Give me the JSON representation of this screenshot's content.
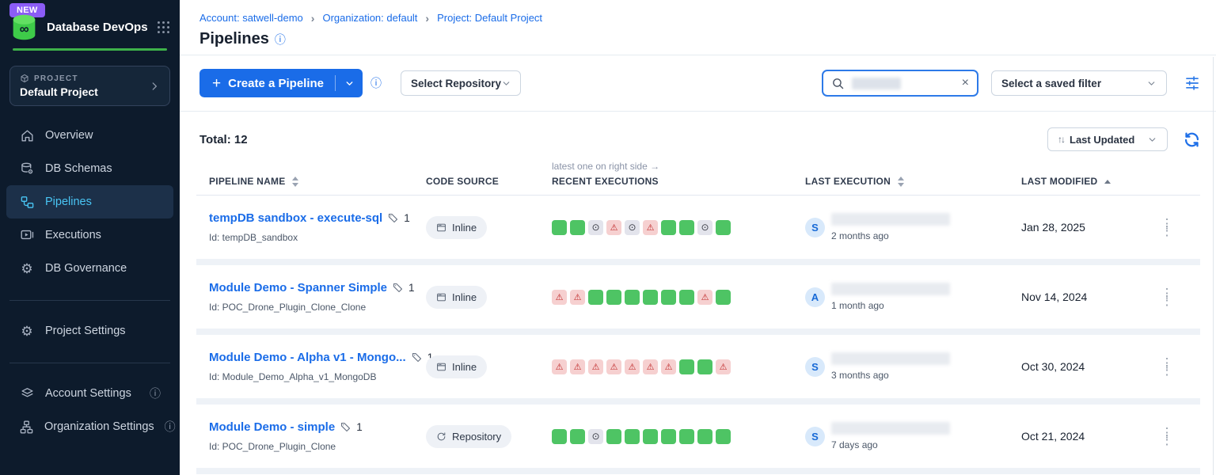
{
  "colors": {
    "accent_blue": "#1a6ce8",
    "brand_green": "#3eb24a",
    "sidebar_bg": "#0d1b2c",
    "active_nav": "#49c5f4",
    "status_ok": "#4ec464",
    "status_warn_bg": "#f6d0d0",
    "status_warn_fg": "#bf2727",
    "status_skip_bg": "#e3e4ec",
    "new_badge_bg": "#8b5cf6"
  },
  "sidebar": {
    "new_badge": "NEW",
    "app_title": "Database DevOps",
    "project_label": "PROJECT",
    "project_name": "Default Project",
    "nav_main": [
      {
        "label": "Overview",
        "icon": "home-icon",
        "active": false
      },
      {
        "label": "DB Schemas",
        "icon": "db-schemas-icon",
        "active": false
      },
      {
        "label": "Pipelines",
        "icon": "pipelines-icon",
        "active": true
      },
      {
        "label": "Executions",
        "icon": "executions-icon",
        "active": false
      },
      {
        "label": "DB Governance",
        "icon": "gear-icon",
        "active": false
      }
    ],
    "nav_project": [
      {
        "label": "Project Settings",
        "icon": "gear-icon",
        "active": false
      }
    ],
    "nav_account": [
      {
        "label": "Account Settings",
        "icon": "layers-icon",
        "info": true,
        "active": false
      },
      {
        "label": "Organization Settings",
        "icon": "org-chart-icon",
        "info": true,
        "active": false
      }
    ]
  },
  "header": {
    "breadcrumbs": [
      "Account: satwell-demo",
      "Organization: default",
      "Project: Default Project"
    ],
    "title": "Pipelines"
  },
  "toolbar": {
    "create_label": "Create a Pipeline",
    "select_repository": "Select Repository",
    "saved_filter": "Select a saved filter"
  },
  "listbar": {
    "total": "Total: 12",
    "sort_label": "Last Updated"
  },
  "table": {
    "hint": "latest one on right side →",
    "columns": {
      "name": "PIPELINE NAME",
      "source": "CODE SOURCE",
      "recent": "RECENT EXECUTIONS",
      "last_execution": "LAST EXECUTION",
      "last_modified": "LAST MODIFIED"
    },
    "status_glyphs": {
      "ok": "",
      "warn": "⚠",
      "skip": "⊙"
    },
    "rows": [
      {
        "name": "tempDB sandbox - execute-sql",
        "tag_count": "1",
        "id": "Id: tempDB_sandbox",
        "source": "Inline",
        "source_type": "inline",
        "executions": [
          "ok",
          "ok",
          "skip",
          "warn",
          "skip",
          "warn",
          "ok",
          "ok",
          "skip",
          "ok"
        ],
        "avatar": "S",
        "last_execution": "2 months ago",
        "last_modified": "Jan 28, 2025"
      },
      {
        "name": "Module Demo - Spanner Simple",
        "tag_count": "1",
        "id": "Id: POC_Drone_Plugin_Clone_Clone",
        "source": "Inline",
        "source_type": "inline",
        "executions": [
          "warn",
          "warn",
          "ok",
          "ok",
          "ok",
          "ok",
          "ok",
          "ok",
          "warn",
          "ok"
        ],
        "avatar": "A",
        "last_execution": "1 month ago",
        "last_modified": "Nov 14, 2024"
      },
      {
        "name": "Module Demo - Alpha v1 - Mongo...",
        "tag_count": "1",
        "id": "Id: Module_Demo_Alpha_v1_MongoDB",
        "source": "Inline",
        "source_type": "inline",
        "executions": [
          "warn",
          "warn",
          "warn",
          "warn",
          "warn",
          "warn",
          "warn",
          "ok",
          "ok",
          "warn"
        ],
        "avatar": "S",
        "last_execution": "3 months ago",
        "last_modified": "Oct 30, 2024"
      },
      {
        "name": "Module Demo - simple",
        "tag_count": "1",
        "id": "Id: POC_Drone_Plugin_Clone",
        "source": "Repository",
        "source_type": "repository",
        "executions": [
          "ok",
          "ok",
          "skip",
          "ok",
          "ok",
          "ok",
          "ok",
          "ok",
          "ok",
          "ok"
        ],
        "avatar": "S",
        "last_execution": "7 days ago",
        "last_modified": "Oct 21, 2024"
      }
    ]
  }
}
